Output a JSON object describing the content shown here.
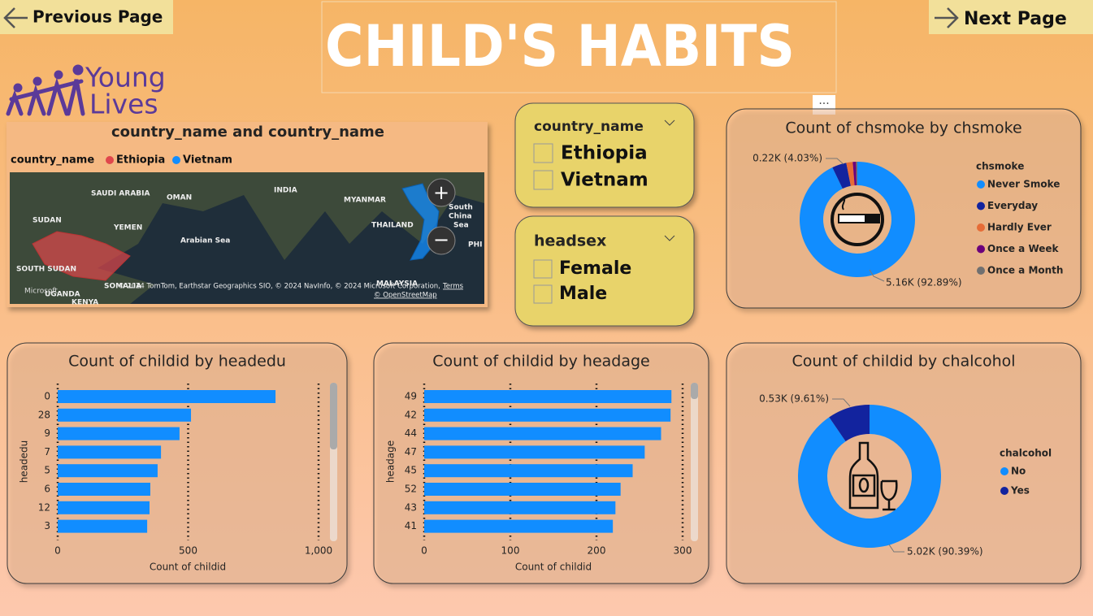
{
  "nav": {
    "previous": "Previous Page",
    "next": "Next Page"
  },
  "title": "CHILD'S HABITS",
  "logo": {
    "line1": "Young",
    "line2": "Lives"
  },
  "map": {
    "title": "country_name and country_name",
    "legend_title": "country_name",
    "legend": [
      {
        "name": "Ethiopia",
        "color": "#e0474c"
      },
      {
        "name": "Vietnam",
        "color": "#118dff"
      }
    ],
    "labels": [
      "SAUDI ARABIA",
      "OMAN",
      "INDIA",
      "MYANMAR",
      "SUDAN",
      "YEMEN",
      "Arabian Sea",
      "THAILAND",
      "SOUTH SUDAN",
      "UGANDA",
      "SOMALIA",
      "KENYA",
      "MALAYSIA",
      "PHI",
      "South",
      "China",
      "Sea"
    ],
    "microsoft": "Microsoft",
    "attribution": "© 2024 TomTom, Earthstar Geographics SIO, © 2024 NavInfo, © 2024 Microsoft Corporation,",
    "terms": "Terms",
    "osm": "© OpenStreetMap"
  },
  "slicers": [
    {
      "title": "country_name",
      "items": [
        "Ethiopia",
        "Vietnam"
      ]
    },
    {
      "title": "headsex",
      "items": [
        "Female",
        "Male"
      ]
    }
  ],
  "chart_data": [
    {
      "type": "donut",
      "title": "Count of chsmoke by chsmoke",
      "legend_title": "chsmoke",
      "categories": [
        "Never Smoke",
        "Everyday",
        "Hardly Ever",
        "Once a Week",
        "Once a Month"
      ],
      "values": [
        5160,
        224,
        100,
        50,
        21
      ],
      "value_labels": [
        "5.16K (92.89%)",
        "0.22K (4.03%)",
        null,
        null,
        null
      ],
      "colors": [
        "#118dff",
        "#12239e",
        "#e66c37",
        "#6b007b",
        "#707070"
      ]
    },
    {
      "type": "hbar",
      "title": "Count of childid by headedu",
      "y_label": "headedu",
      "x_label": "Count of childid",
      "categories": [
        "0",
        "28",
        "9",
        "7",
        "5",
        "6",
        "12",
        "3"
      ],
      "values": [
        835,
        511,
        467,
        396,
        383,
        355,
        352,
        343
      ],
      "color": "#118dff",
      "xlim": [
        0,
        1000
      ],
      "xticks": [
        0,
        500,
        {
          "value": 1000,
          "label": "1,000"
        }
      ],
      "grid": true
    },
    {
      "type": "hbar",
      "title": "Count of childid by headage",
      "y_label": "headage",
      "x_label": "Count of childid",
      "categories": [
        "49",
        "42",
        "44",
        "47",
        "45",
        "52",
        "43",
        "41"
      ],
      "values": [
        287,
        286,
        275,
        256,
        242,
        228,
        222,
        219
      ],
      "color": "#118dff",
      "xlim": [
        0,
        300
      ],
      "xticks": [
        0,
        100,
        200,
        300
      ],
      "grid": true
    },
    {
      "type": "donut",
      "title": "Count of childid by chalcohol",
      "legend_title": "chalcohol",
      "categories": [
        "No",
        "Yes"
      ],
      "values": [
        5020,
        530
      ],
      "value_labels": [
        "5.02K (90.39%)",
        "0.53K (9.61%)"
      ],
      "colors": [
        "#118dff",
        "#12239e"
      ]
    }
  ]
}
